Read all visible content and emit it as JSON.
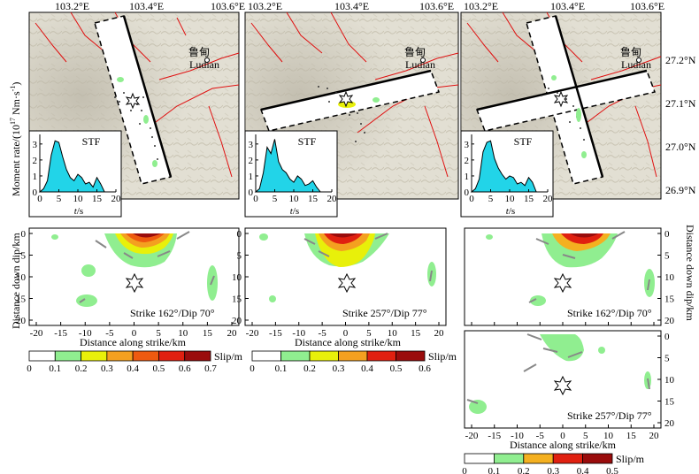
{
  "figure": {
    "map_lon_ticks": [
      "103.2°E",
      "103.4°E",
      "103.6°E"
    ],
    "map_lat_ticks": [
      "27.2°N",
      "27.1°N",
      "27.0°N",
      "26.9°N"
    ],
    "city_cn": "鲁甸",
    "city_en": "Ludian",
    "stf_label": "STF",
    "stf_ylabel": "Moment rate/(10¹⁷ N·m·s⁻¹)",
    "stf_ylabel_main": "Moment rate/(10",
    "stf_ylabel_exp": "17",
    "stf_ylabel_unit": " Nm·s",
    "stf_ylabel_exp2": "-1",
    "stf_ylabel_close": ")",
    "stf_xlabel_var": "t",
    "stf_xlabel_unit": "/s",
    "slip_ylabel_left": "Distance down dip/km",
    "slip_ylabel_right": "Distance down dip/km",
    "slip_xlabel": "Distance along strike/km",
    "colorbar_label": "Slip/m",
    "panels": [
      {
        "id": "a",
        "strike_label": "Strike 162°/Dip 70°",
        "colorbar_ticks": [
          "0",
          "0.1",
          "0.2",
          "0.3",
          "0.4",
          "0.5",
          "0.6",
          "0.7"
        ],
        "colorbar_colors": [
          "#ffffff",
          "#90ee90",
          "#e8f00a",
          "#f4a020",
          "#ee5a10",
          "#e02010",
          "#9a0c0c"
        ]
      },
      {
        "id": "b",
        "strike_label": "Strike 257°/Dip 77°",
        "colorbar_ticks": [
          "0",
          "0.1",
          "0.2",
          "0.3",
          "0.4",
          "0.5",
          "0.6"
        ],
        "colorbar_colors": [
          "#ffffff",
          "#90ee90",
          "#e8f00a",
          "#f4a020",
          "#e02010",
          "#9a0c0c"
        ]
      },
      {
        "id": "c",
        "strike_label_1": "Strike 162°/Dip 70°",
        "strike_label_2": "Strike 257°/Dip 77°",
        "colorbar_ticks": [
          "0",
          "0.1",
          "0.2",
          "0.3",
          "0.4",
          "0.5"
        ],
        "colorbar_colors": [
          "#ffffff",
          "#90ee90",
          "#f4b020",
          "#e02010",
          "#9a0c0c"
        ]
      }
    ],
    "slip_x_ticks": [
      "-20",
      "-15",
      "-10",
      "-5",
      "0",
      "5",
      "10",
      "15",
      "20"
    ],
    "slip_y_ticks": [
      "0",
      "5",
      "10",
      "15",
      "20"
    ]
  },
  "chart_data": [
    {
      "type": "area",
      "title": "STF",
      "panel": "a",
      "xlabel": "t/s",
      "ylabel": "Moment rate/(10^17 Nm·s^-1)",
      "xlim": [
        0,
        20
      ],
      "ylim": [
        0,
        3.6
      ],
      "x_ticks": [
        0,
        5,
        10,
        15,
        20
      ],
      "y_ticks": [
        0,
        1,
        2,
        3
      ],
      "x": [
        0,
        1,
        2,
        3,
        4,
        5,
        6,
        7,
        8,
        9,
        10,
        11,
        12,
        13,
        14,
        15,
        16,
        17
      ],
      "y": [
        0,
        0.2,
        0.7,
        2.3,
        3.2,
        3.1,
        2.2,
        1.4,
        0.9,
        0.7,
        1.1,
        0.9,
        0.5,
        0.6,
        0.3,
        0.9,
        0.5,
        0
      ]
    },
    {
      "type": "area",
      "title": "STF",
      "panel": "b",
      "xlabel": "t/s",
      "ylabel": "Moment rate/(10^17 Nm·s^-1)",
      "xlim": [
        0,
        20
      ],
      "ylim": [
        0,
        3.6
      ],
      "x_ticks": [
        0,
        5,
        10,
        15,
        20
      ],
      "y_ticks": [
        0,
        1,
        2,
        3
      ],
      "x": [
        0,
        1,
        2,
        3,
        4,
        5,
        6,
        7,
        8,
        9,
        10,
        11,
        12,
        13,
        14,
        15,
        16,
        17
      ],
      "y": [
        0,
        0.2,
        1.2,
        2.8,
        2.4,
        3.3,
        1.9,
        1.4,
        1.2,
        0.8,
        0.6,
        1.0,
        0.8,
        0.4,
        0.5,
        0.7,
        0.3,
        0
      ]
    },
    {
      "type": "area",
      "title": "STF",
      "panel": "c",
      "xlabel": "t/s",
      "ylabel": "Moment rate/(10^17 Nm·s^-1)",
      "xlim": [
        0,
        20
      ],
      "ylim": [
        0,
        3.6
      ],
      "x_ticks": [
        0,
        5,
        10,
        15,
        20
      ],
      "y_ticks": [
        0,
        1,
        2,
        3
      ],
      "x": [
        0,
        1,
        2,
        3,
        4,
        5,
        6,
        7,
        8,
        9,
        10,
        11,
        12,
        13,
        14,
        15,
        16,
        17
      ],
      "y": [
        0,
        0.2,
        0.8,
        2.5,
        3.1,
        3.2,
        2.1,
        1.5,
        1.1,
        0.8,
        1.0,
        0.9,
        0.5,
        0.6,
        0.4,
        0.9,
        0.6,
        0
      ]
    }
  ]
}
